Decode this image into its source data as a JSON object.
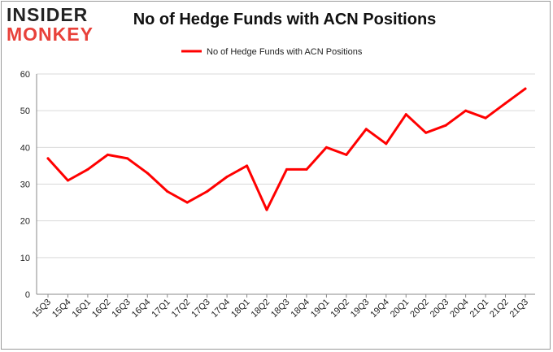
{
  "logo": {
    "line1": "INSIDER",
    "line2": "MONKEY"
  },
  "chart_data": {
    "type": "line",
    "title": "No of Hedge Funds with ACN Positions",
    "categories": [
      "15Q3",
      "15Q4",
      "16Q1",
      "16Q2",
      "16Q3",
      "16Q4",
      "17Q1",
      "17Q2",
      "17Q3",
      "17Q4",
      "18Q1",
      "18Q2",
      "18Q3",
      "18Q4",
      "19Q1",
      "19Q2",
      "19Q3",
      "19Q4",
      "20Q1",
      "20Q2",
      "20Q3",
      "20Q4",
      "21Q1",
      "21Q2",
      "21Q3"
    ],
    "series": [
      {
        "name": "No of Hedge Funds with ACN Positions",
        "color": "#ff0000",
        "values": [
          37,
          31,
          34,
          38,
          37,
          33,
          28,
          25,
          28,
          32,
          35,
          23,
          34,
          34,
          40,
          38,
          45,
          41,
          49,
          44,
          46,
          50,
          48,
          52,
          56
        ]
      }
    ],
    "ylim": [
      0,
      60
    ],
    "yticks": [
      0,
      10,
      20,
      30,
      40,
      50,
      60
    ],
    "grid": true,
    "legend": "top-center"
  }
}
